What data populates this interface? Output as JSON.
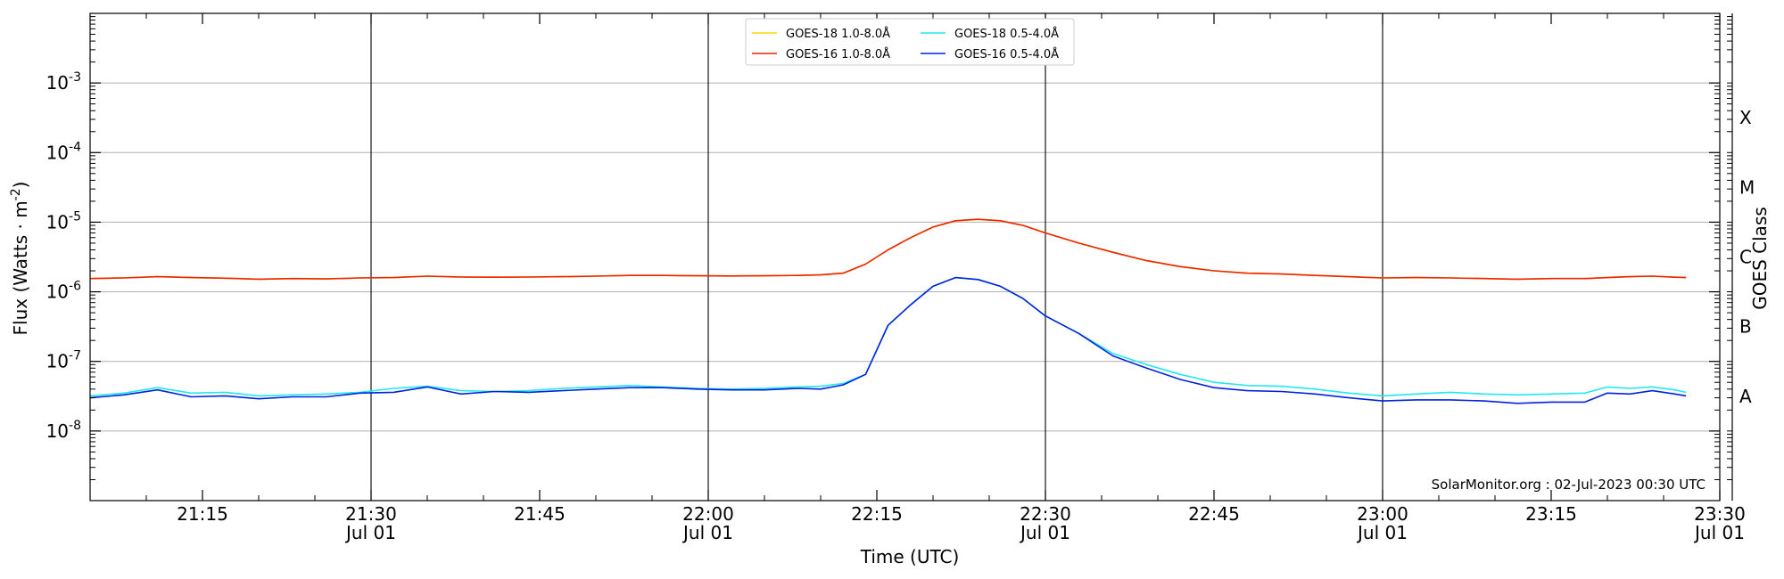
{
  "chart_data": {
    "type": "line",
    "title": "",
    "xlabel": "Time (UTC)",
    "ylabel": "Flux (Watts · m",
    "ylabel_sup": "-2",
    "ylabel_close": ")",
    "right_label": "GOES Class",
    "watermark": "SolarMonitor.org : 02-Jul-2023 00:30 UTC",
    "y_scale": "log",
    "ylim": [
      1e-09,
      0.01
    ],
    "xlim": [
      "2023-07-01 21:05",
      "2023-07-01 23:30"
    ],
    "grid": "horizontal major gridlines",
    "legend_position": "top-center",
    "x_ticks": [
      {
        "time": "2023-07-01 21:15",
        "label": "21:15",
        "sub": ""
      },
      {
        "time": "2023-07-01 21:30",
        "label": "21:30",
        "sub": "Jul 01"
      },
      {
        "time": "2023-07-01 21:45",
        "label": "21:45",
        "sub": ""
      },
      {
        "time": "2023-07-01 22:00",
        "label": "22:00",
        "sub": "Jul 01"
      },
      {
        "time": "2023-07-01 22:15",
        "label": "22:15",
        "sub": ""
      },
      {
        "time": "2023-07-01 22:30",
        "label": "22:30",
        "sub": "Jul 01"
      },
      {
        "time": "2023-07-01 22:45",
        "label": "22:45",
        "sub": ""
      },
      {
        "time": "2023-07-01 23:00",
        "label": "23:00",
        "sub": "Jul 01"
      },
      {
        "time": "2023-07-01 23:15",
        "label": "23:15",
        "sub": ""
      },
      {
        "time": "2023-07-01 23:30",
        "label": "23:30",
        "sub": "Jul 01"
      }
    ],
    "vertical_lines": [
      "2023-07-01 21:30",
      "2023-07-01 22:00",
      "2023-07-01 22:30",
      "2023-07-01 23:00"
    ],
    "y_ticks": [
      {
        "value": 1e-08,
        "base": "10",
        "exp": "-8"
      },
      {
        "value": 1e-07,
        "base": "10",
        "exp": "-7"
      },
      {
        "value": 1e-06,
        "base": "10",
        "exp": "-6"
      },
      {
        "value": 1e-05,
        "base": "10",
        "exp": "-5"
      },
      {
        "value": 0.0001,
        "base": "10",
        "exp": "-4"
      },
      {
        "value": 0.001,
        "base": "10",
        "exp": "-3"
      }
    ],
    "goes_classes": [
      {
        "label": "A",
        "value": 3.16e-08
      },
      {
        "label": "B",
        "value": 3.16e-07
      },
      {
        "label": "C",
        "value": 3.16e-06
      },
      {
        "label": "M",
        "value": 3.16e-05
      },
      {
        "label": "X",
        "value": 0.000316
      }
    ],
    "x": [
      "21:05",
      "21:08",
      "21:11",
      "21:14",
      "21:17",
      "21:20",
      "21:23",
      "21:26",
      "21:29",
      "21:32",
      "21:35",
      "21:38",
      "21:41",
      "21:44",
      "21:47",
      "21:50",
      "21:53",
      "21:56",
      "21:59",
      "22:02",
      "22:05",
      "22:08",
      "22:10",
      "22:12",
      "22:14",
      "22:16",
      "22:18",
      "22:20",
      "22:22",
      "22:24",
      "22:26",
      "22:28",
      "22:30",
      "22:33",
      "22:36",
      "22:39",
      "22:42",
      "22:45",
      "22:48",
      "22:51",
      "22:54",
      "22:57",
      "23:00",
      "23:03",
      "23:06",
      "23:09",
      "23:12",
      "23:15",
      "23:18",
      "23:20",
      "23:22",
      "23:24",
      "23:26",
      "23:27"
    ],
    "series": [
      {
        "name": "GOES-18 1.0-8.0Å",
        "color": "#ffd700",
        "values": [
          1.55e-06,
          1.58e-06,
          1.65e-06,
          1.6e-06,
          1.57e-06,
          1.52e-06,
          1.55e-06,
          1.53e-06,
          1.58e-06,
          1.6e-06,
          1.68e-06,
          1.63e-06,
          1.62e-06,
          1.63e-06,
          1.65e-06,
          1.68e-06,
          1.72e-06,
          1.72e-06,
          1.7e-06,
          1.69e-06,
          1.7e-06,
          1.72e-06,
          1.75e-06,
          1.85e-06,
          2.5e-06,
          4e-06,
          6e-06,
          8.5e-06,
          1.05e-05,
          1.1e-05,
          1.05e-05,
          9e-06,
          7e-06,
          5e-06,
          3.7e-06,
          2.8e-06,
          2.3e-06,
          2e-06,
          1.85e-06,
          1.8e-06,
          1.72e-06,
          1.65e-06,
          1.58e-06,
          1.6e-06,
          1.58e-06,
          1.55e-06,
          1.52e-06,
          1.55e-06,
          1.55e-06,
          1.6e-06,
          1.65e-06,
          1.68e-06,
          1.62e-06,
          1.6e-06
        ]
      },
      {
        "name": "GOES-16 1.0-8.0Å",
        "color": "#ee2200",
        "values": [
          1.55e-06,
          1.58e-06,
          1.65e-06,
          1.6e-06,
          1.57e-06,
          1.52e-06,
          1.55e-06,
          1.53e-06,
          1.58e-06,
          1.6e-06,
          1.68e-06,
          1.63e-06,
          1.62e-06,
          1.63e-06,
          1.65e-06,
          1.68e-06,
          1.72e-06,
          1.72e-06,
          1.7e-06,
          1.69e-06,
          1.7e-06,
          1.72e-06,
          1.75e-06,
          1.85e-06,
          2.5e-06,
          4e-06,
          6e-06,
          8.5e-06,
          1.05e-05,
          1.1e-05,
          1.05e-05,
          9e-06,
          7e-06,
          5e-06,
          3.7e-06,
          2.8e-06,
          2.3e-06,
          2e-06,
          1.85e-06,
          1.8e-06,
          1.72e-06,
          1.65e-06,
          1.58e-06,
          1.6e-06,
          1.58e-06,
          1.55e-06,
          1.52e-06,
          1.55e-06,
          1.55e-06,
          1.6e-06,
          1.65e-06,
          1.68e-06,
          1.62e-06,
          1.6e-06
        ]
      },
      {
        "name": "GOES-18 0.5-4.0Å",
        "color": "#22e8f0",
        "values": [
          3.2e-08,
          3.5e-08,
          4.2e-08,
          3.5e-08,
          3.6e-08,
          3.2e-08,
          3.3e-08,
          3.4e-08,
          3.6e-08,
          4.1e-08,
          4.4e-08,
          3.8e-08,
          3.7e-08,
          3.8e-08,
          4.1e-08,
          4.3e-08,
          4.5e-08,
          4.3e-08,
          4.1e-08,
          4e-08,
          4.1e-08,
          4.3e-08,
          4.4e-08,
          4.8e-08,
          6.5e-08,
          3.3e-07,
          6.5e-07,
          1.2e-06,
          1.6e-06,
          1.5e-06,
          1.2e-06,
          8e-07,
          4.5e-07,
          2.5e-07,
          1.3e-07,
          9e-08,
          6.5e-08,
          5e-08,
          4.5e-08,
          4.4e-08,
          4e-08,
          3.5e-08,
          3.2e-08,
          3.4e-08,
          3.6e-08,
          3.4e-08,
          3.3e-08,
          3.4e-08,
          3.5e-08,
          4.3e-08,
          4.1e-08,
          4.3e-08,
          3.9e-08,
          3.6e-08
        ]
      },
      {
        "name": "GOES-16 0.5-4.0Å",
        "color": "#0022dd",
        "values": [
          3e-08,
          3.3e-08,
          3.9e-08,
          3.1e-08,
          3.2e-08,
          2.9e-08,
          3.1e-08,
          3.1e-08,
          3.5e-08,
          3.6e-08,
          4.3e-08,
          3.4e-08,
          3.7e-08,
          3.6e-08,
          3.8e-08,
          4e-08,
          4.2e-08,
          4.2e-08,
          4e-08,
          3.9e-08,
          3.9e-08,
          4.1e-08,
          4e-08,
          4.6e-08,
          6.5e-08,
          3.3e-07,
          6.5e-07,
          1.2e-06,
          1.6e-06,
          1.5e-06,
          1.2e-06,
          8e-07,
          4.5e-07,
          2.5e-07,
          1.2e-07,
          8e-08,
          5.5e-08,
          4.2e-08,
          3.8e-08,
          3.7e-08,
          3.4e-08,
          3e-08,
          2.7e-08,
          2.8e-08,
          2.8e-08,
          2.7e-08,
          2.5e-08,
          2.6e-08,
          2.6e-08,
          3.5e-08,
          3.4e-08,
          3.8e-08,
          3.4e-08,
          3.2e-08
        ]
      }
    ]
  }
}
